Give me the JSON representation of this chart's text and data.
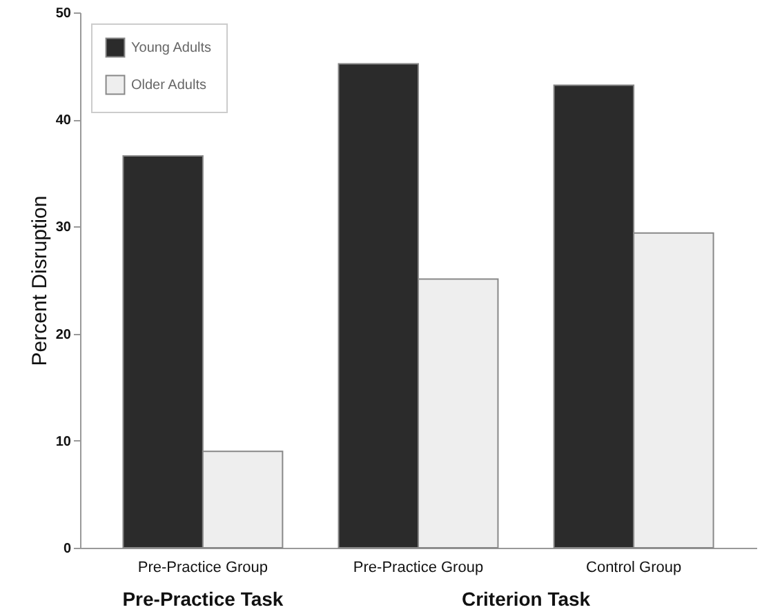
{
  "chart_data": {
    "type": "bar",
    "categories": [
      "Pre-Practice Group",
      "Pre-Practice Group",
      "Control Group"
    ],
    "series": [
      {
        "name": "Young Adults",
        "color": "#2b2b2b",
        "values": [
          36.6,
          45.2,
          43.2
        ]
      },
      {
        "name": "Older Adults",
        "color": "#eeeeee",
        "values": [
          9.0,
          25.1,
          29.4
        ]
      }
    ],
    "ylabel": "Percent Disruption",
    "ylim": [
      0,
      50
    ],
    "yticks": [
      0,
      10,
      20,
      30,
      40,
      50
    ],
    "annotations": [
      "Pre-Practice Task",
      "Criterion Task"
    ],
    "grid": false,
    "legend": "top left"
  }
}
